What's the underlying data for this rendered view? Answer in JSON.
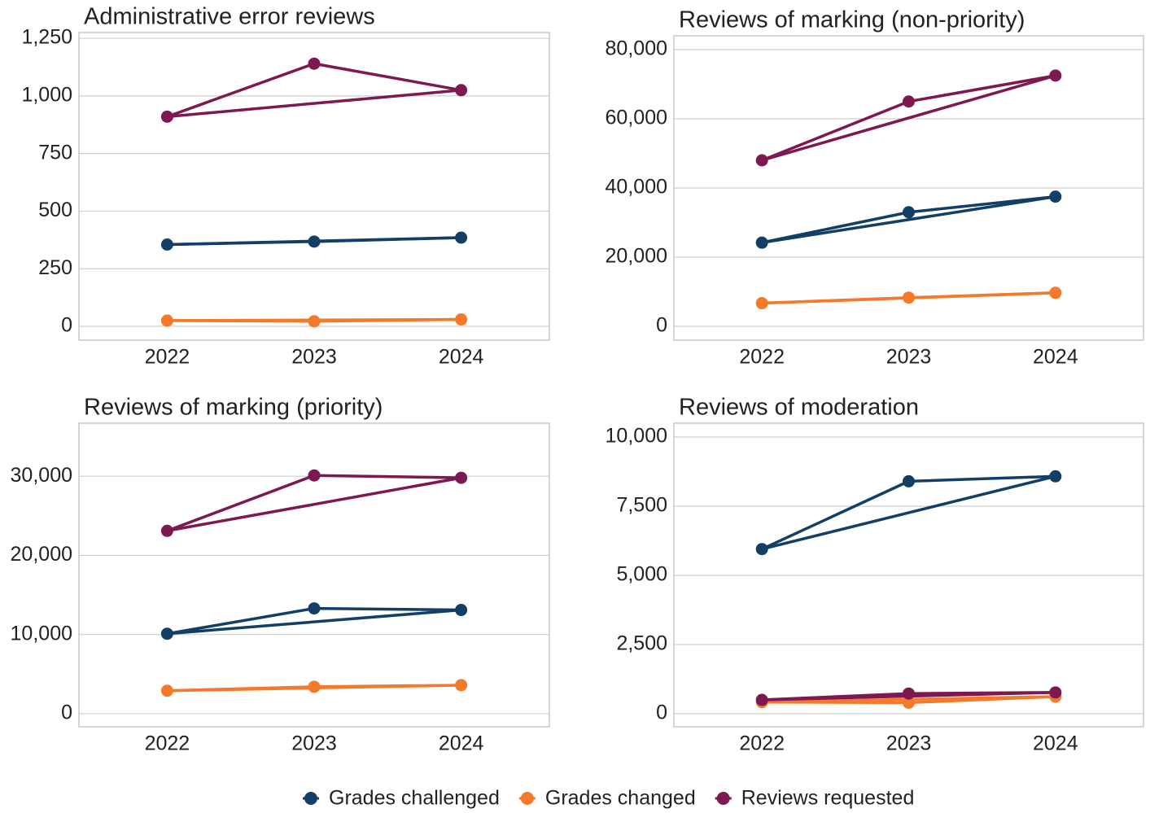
{
  "chart_data": [
    {
      "type": "line",
      "title": "Administrative error reviews",
      "categories": [
        "2022",
        "2023",
        "2024"
      ],
      "ylim": [
        -60,
        1275
      ],
      "yticks": [
        0,
        250,
        500,
        750,
        {
          "value": 1000,
          "label": "1,000"
        },
        {
          "value": 1250,
          "label": "1,250"
        }
      ],
      "grid": true,
      "series": [
        {
          "name": "Grades challenged",
          "color": "#133f66",
          "values": [
            355,
            368,
            385
          ]
        },
        {
          "name": "Grades changed",
          "color": "#f47a2a",
          "values": [
            25,
            22,
            30
          ]
        },
        {
          "name": "Reviews requested",
          "color": "#7e1850",
          "values": [
            910,
            1140,
            1025
          ]
        }
      ]
    },
    {
      "type": "line",
      "title": "Reviews of marking (non-priority)",
      "categories": [
        "2022",
        "2023",
        "2024"
      ],
      "ylim": [
        -4000,
        84000
      ],
      "yticks": [
        0,
        {
          "value": 20000,
          "label": "20,000"
        },
        {
          "value": 40000,
          "label": "40,000"
        },
        {
          "value": 60000,
          "label": "60,000"
        },
        {
          "value": 80000,
          "label": "80,000"
        }
      ],
      "grid": true,
      "series": [
        {
          "name": "Grades challenged",
          "color": "#133f66",
          "values": [
            24200,
            33000,
            37500
          ]
        },
        {
          "name": "Grades changed",
          "color": "#f47a2a",
          "values": [
            6700,
            8300,
            9700
          ]
        },
        {
          "name": "Reviews requested",
          "color": "#7e1850",
          "values": [
            48000,
            65000,
            72500
          ]
        }
      ]
    },
    {
      "type": "line",
      "title": "Reviews of marking (priority)",
      "categories": [
        "2022",
        "2023",
        "2024"
      ],
      "ylim": [
        -1650,
        36700
      ],
      "yticks": [
        0,
        {
          "value": 10000,
          "label": "10,000"
        },
        {
          "value": 20000,
          "label": "20,000"
        },
        {
          "value": 30000,
          "label": "30,000"
        }
      ],
      "grid": true,
      "series": [
        {
          "name": "Grades challenged",
          "color": "#133f66",
          "values": [
            10100,
            13300,
            13100
          ]
        },
        {
          "name": "Grades changed",
          "color": "#f47a2a",
          "values": [
            2900,
            3400,
            3600
          ]
        },
        {
          "name": "Reviews requested",
          "color": "#7e1850",
          "values": [
            23100,
            30100,
            29800
          ]
        }
      ]
    },
    {
      "type": "line",
      "title": "Reviews of moderation",
      "categories": [
        "2022",
        "2023",
        "2024"
      ],
      "ylim": [
        -470,
        10500
      ],
      "yticks": [
        0,
        {
          "value": 2500,
          "label": "2,500"
        },
        {
          "value": 5000,
          "label": "5,000"
        },
        {
          "value": 7500,
          "label": "7,500"
        },
        {
          "value": 10000,
          "label": "10,000"
        }
      ],
      "grid": true,
      "series": [
        {
          "name": "Grades challenged",
          "color": "#133f66",
          "values": [
            5950,
            8400,
            8580
          ]
        },
        {
          "name": "Grades changed",
          "color": "#f47a2a",
          "values": [
            420,
            400,
            620
          ]
        },
        {
          "name": "Reviews requested",
          "color": "#7e1850",
          "values": [
            500,
            730,
            770
          ]
        }
      ]
    }
  ]
}
